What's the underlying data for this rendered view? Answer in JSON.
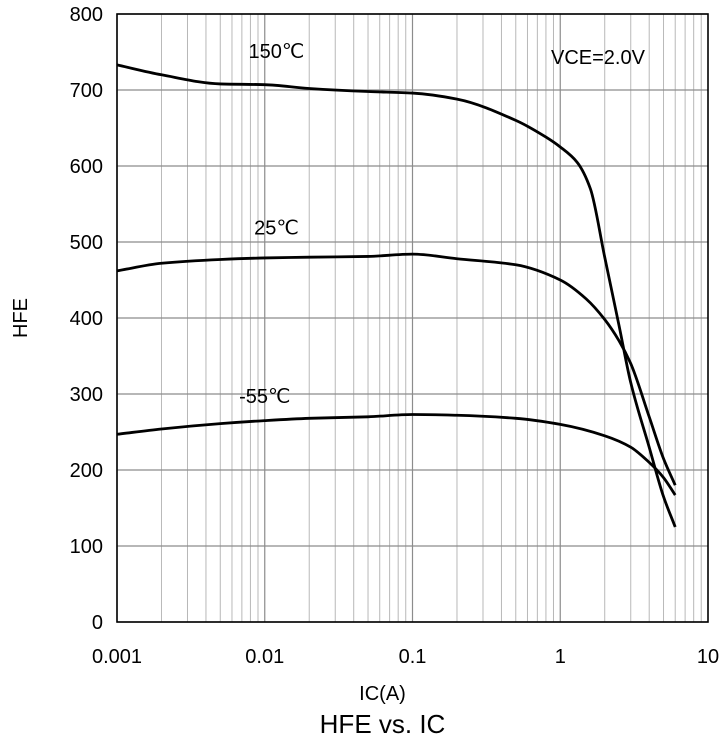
{
  "chart_data": {
    "type": "line",
    "title": "HFE vs. IC",
    "xlabel": "IC(A)",
    "ylabel": "HFE",
    "xscale": "log",
    "xlim": [
      0.001,
      10
    ],
    "ylim": [
      0,
      800
    ],
    "x_ticks": [
      "0.001",
      "0.01",
      "0.1",
      "1",
      "10"
    ],
    "y_ticks": [
      "0",
      "100",
      "200",
      "300",
      "400",
      "500",
      "600",
      "700",
      "800"
    ],
    "grid": true,
    "annotations": [
      "VCE=2.0V"
    ],
    "series": [
      {
        "name": "150℃",
        "x": [
          0.001,
          0.002,
          0.005,
          0.01,
          0.02,
          0.05,
          0.1,
          0.2,
          0.5,
          0.8,
          1.0,
          1.3,
          1.6,
          2.0,
          2.5,
          3.0,
          4.0,
          5.0,
          6.0
        ],
        "y": [
          733,
          720,
          708,
          707,
          702,
          698,
          696,
          688,
          660,
          638,
          625,
          605,
          570,
          480,
          390,
          315,
          230,
          165,
          125
        ]
      },
      {
        "name": "25℃",
        "x": [
          0.001,
          0.002,
          0.005,
          0.01,
          0.02,
          0.05,
          0.1,
          0.2,
          0.5,
          1.0,
          1.5,
          2.0,
          2.5,
          3.0,
          4.0,
          5.0,
          6.0
        ],
        "y": [
          462,
          472,
          477,
          479,
          480,
          481,
          484,
          478,
          470,
          450,
          425,
          398,
          370,
          340,
          270,
          215,
          180
        ]
      },
      {
        "name": "-55℃",
        "x": [
          0.001,
          0.002,
          0.005,
          0.01,
          0.02,
          0.05,
          0.1,
          0.2,
          0.5,
          1.0,
          2.0,
          3.0,
          4.0,
          5.0,
          6.0
        ],
        "y": [
          247,
          254,
          261,
          265,
          268,
          270,
          273,
          272,
          268,
          260,
          245,
          230,
          210,
          190,
          167
        ]
      }
    ],
    "series_labels": [
      "150℃",
      "25℃",
      "-55℃"
    ]
  }
}
